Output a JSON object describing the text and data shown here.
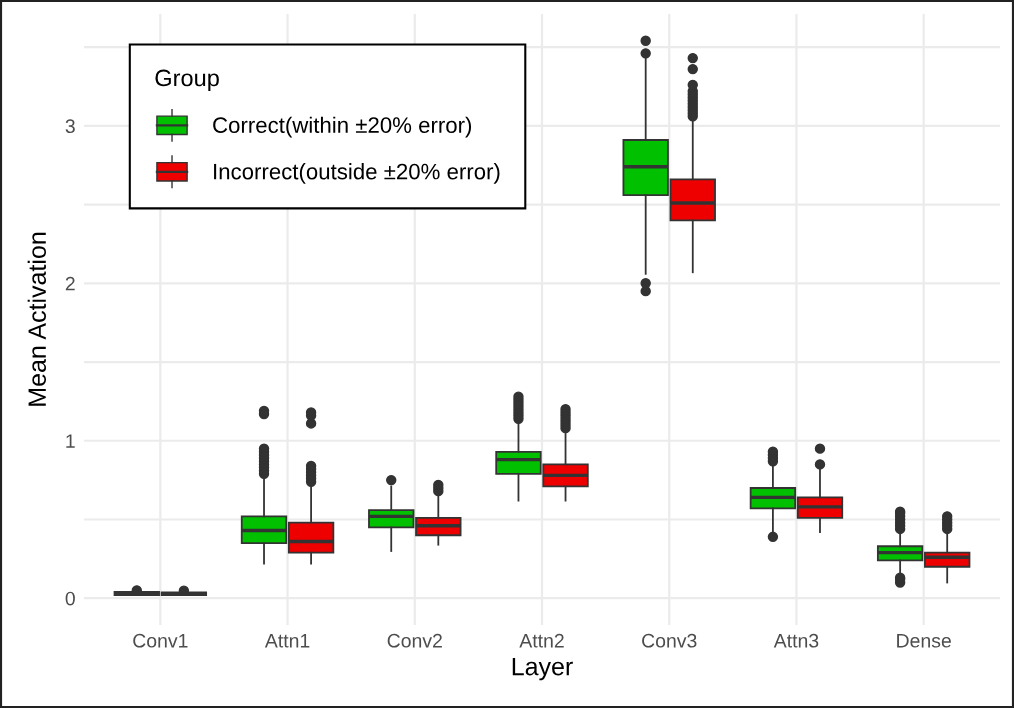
{
  "chart_data": {
    "type": "box",
    "xlabel": "Layer",
    "ylabel": "Mean Activation",
    "legend_title": "Group",
    "legend": "top left",
    "grid": true,
    "categories": [
      "Conv1",
      "Attn1",
      "Conv2",
      "Attn2",
      "Conv3",
      "Attn3",
      "Dense"
    ],
    "ylim": [
      -0.17,
      3.71
    ],
    "yticks": [
      0,
      {
        "value": 0.5,
        "label": null
      },
      1,
      {
        "value": 1.5,
        "label": null
      },
      2,
      {
        "value": 2.5,
        "label": null
      },
      3,
      {
        "value": 3.5,
        "label": null
      }
    ],
    "series": [
      {
        "name": "Correct(within ±20% error)",
        "color": "#00c000",
        "boxes": [
          {
            "low": 0.02,
            "q1": 0.02,
            "median": 0.03,
            "q3": 0.04,
            "high": 0.04,
            "outliers": [
              0.05
            ]
          },
          {
            "low": 0.22,
            "q1": 0.35,
            "median": 0.43,
            "q3": 0.52,
            "high": 0.77,
            "outliers": [
              0.79,
              0.81,
              0.83,
              0.85,
              0.87,
              0.89,
              0.91,
              0.93,
              0.95,
              1.17,
              1.19
            ]
          },
          {
            "low": 0.3,
            "q1": 0.45,
            "median": 0.52,
            "q3": 0.56,
            "high": 0.71,
            "outliers": [
              0.75
            ]
          },
          {
            "low": 0.62,
            "q1": 0.79,
            "median": 0.88,
            "q3": 0.93,
            "high": 1.12,
            "outliers": [
              1.14,
              1.16,
              1.18,
              1.2,
              1.22,
              1.24,
              1.26,
              1.28
            ]
          },
          {
            "low": 2.06,
            "q1": 2.56,
            "median": 2.74,
            "q3": 2.91,
            "high": 3.44,
            "outliers": [
              1.95,
              2.0,
              3.46,
              3.54
            ]
          },
          {
            "low": 0.42,
            "q1": 0.57,
            "median": 0.64,
            "q3": 0.7,
            "high": 0.85,
            "outliers": [
              0.39,
              0.87,
              0.89,
              0.91,
              0.93
            ]
          },
          {
            "low": 0.16,
            "q1": 0.24,
            "median": 0.29,
            "q3": 0.33,
            "high": 0.42,
            "outliers": [
              0.1,
              0.12,
              0.13,
              0.44,
              0.46,
              0.48,
              0.5,
              0.52,
              0.54,
              0.55
            ]
          }
        ]
      },
      {
        "name": "Incorrect(outside ±20% error)",
        "color": "#ee0000",
        "boxes": [
          {
            "low": 0.02,
            "q1": 0.02,
            "median": 0.028,
            "q3": 0.037,
            "high": 0.037,
            "outliers": [
              0.048
            ]
          },
          {
            "low": 0.22,
            "q1": 0.29,
            "median": 0.36,
            "q3": 0.48,
            "high": 0.72,
            "outliers": [
              0.74,
              0.76,
              0.78,
              0.8,
              0.82,
              0.84,
              1.11,
              1.16,
              1.18
            ]
          },
          {
            "low": 0.34,
            "q1": 0.4,
            "median": 0.46,
            "q3": 0.51,
            "high": 0.66,
            "outliers": [
              0.68,
              0.7,
              0.72
            ]
          },
          {
            "low": 0.62,
            "q1": 0.71,
            "median": 0.78,
            "q3": 0.85,
            "high": 1.06,
            "outliers": [
              1.08,
              1.1,
              1.12,
              1.14,
              1.16,
              1.18,
              1.2
            ]
          },
          {
            "low": 2.07,
            "q1": 2.4,
            "median": 2.51,
            "q3": 2.66,
            "high": 3.03,
            "outliers": [
              3.06,
              3.08,
              3.1,
              3.12,
              3.14,
              3.16,
              3.18,
              3.2,
              3.22,
              3.26,
              3.36,
              3.43
            ]
          },
          {
            "low": 0.42,
            "q1": 0.51,
            "median": 0.58,
            "q3": 0.64,
            "high": 0.82,
            "outliers": [
              0.85,
              0.95
            ]
          },
          {
            "low": 0.1,
            "q1": 0.2,
            "median": 0.26,
            "q3": 0.29,
            "high": 0.43,
            "outliers": [
              0.44,
              0.46,
              0.48,
              0.5,
              0.52
            ]
          }
        ]
      }
    ]
  }
}
